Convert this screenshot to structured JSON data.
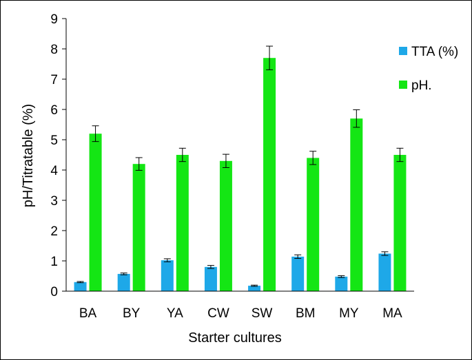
{
  "chart_data": {
    "type": "bar",
    "title": "",
    "xlabel": "Starter cultures",
    "ylabel": "pH/Titratable (%)",
    "ylim": [
      0,
      9
    ],
    "yticks": [
      0,
      1,
      2,
      3,
      4,
      5,
      6,
      7,
      8,
      9
    ],
    "grid": false,
    "legend_position": "right",
    "categories": [
      "BA",
      "BY",
      "YA",
      "CW",
      "SW",
      "BM",
      "MY",
      "MA"
    ],
    "series": [
      {
        "name": "TTA (%)",
        "color": "#1ea8e8",
        "values": [
          0.3,
          0.57,
          1.02,
          0.8,
          0.18,
          1.14,
          0.48,
          1.24
        ],
        "errors": [
          0.02,
          0.03,
          0.05,
          0.05,
          0.02,
          0.06,
          0.03,
          0.06
        ]
      },
      {
        "name": "pH.",
        "color": "#14e614",
        "values": [
          5.2,
          4.2,
          4.5,
          4.3,
          7.7,
          4.4,
          5.7,
          4.5
        ],
        "errors": [
          0.26,
          0.21,
          0.22,
          0.22,
          0.39,
          0.22,
          0.29,
          0.22
        ]
      }
    ]
  }
}
